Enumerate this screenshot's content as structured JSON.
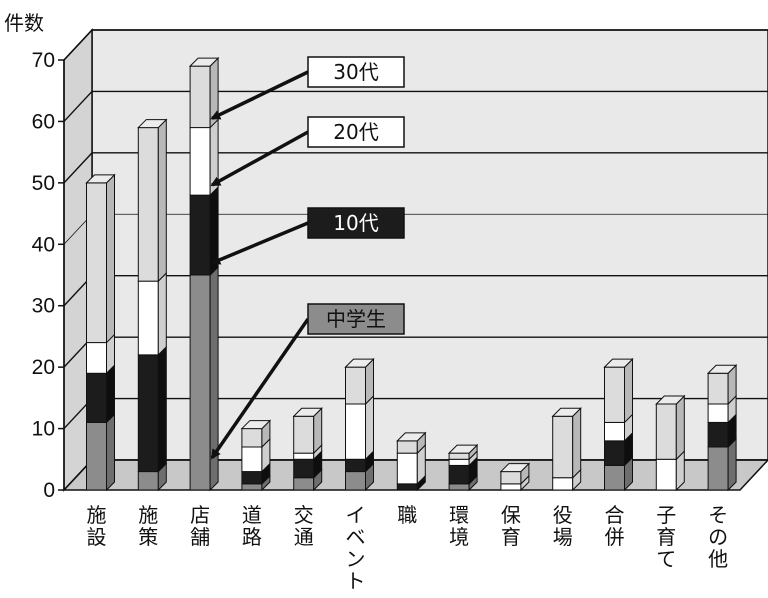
{
  "chart_data": {
    "type": "bar",
    "stacked": true,
    "three_d": true,
    "ylabel": "件数",
    "ylim": [
      0,
      70
    ],
    "yticks": [
      0,
      10,
      20,
      30,
      40,
      50,
      60,
      70
    ],
    "categories": [
      "施設",
      "施策",
      "店舗",
      "道路",
      "交通",
      "イベント",
      "職",
      "環境",
      "保育",
      "役場",
      "合併",
      "子育て",
      "その他"
    ],
    "series": [
      {
        "name": "中学生",
        "color": "#8c8c8c",
        "values": [
          11,
          3,
          35,
          1,
          2,
          3,
          0,
          1,
          0,
          0,
          4,
          0,
          7
        ]
      },
      {
        "name": "10代",
        "color": "#1c1c1c",
        "values": [
          8,
          19,
          13,
          2,
          3,
          2,
          1,
          3,
          0,
          0,
          4,
          0,
          4
        ]
      },
      {
        "name": "20代",
        "color": "#ffffff",
        "values": [
          5,
          12,
          11,
          4,
          1,
          9,
          5,
          1,
          1,
          2,
          3,
          5,
          3
        ]
      },
      {
        "name": "30代",
        "color": "#dcdcdc",
        "values": [
          26,
          25,
          10,
          3,
          6,
          6,
          2,
          1,
          2,
          10,
          9,
          9,
          5
        ]
      }
    ],
    "legend": [
      "30代",
      "20代",
      "10代",
      "中学生"
    ],
    "legend_placement": "right, with arrows pointing to the 店舗 bar segments",
    "grid": true
  }
}
